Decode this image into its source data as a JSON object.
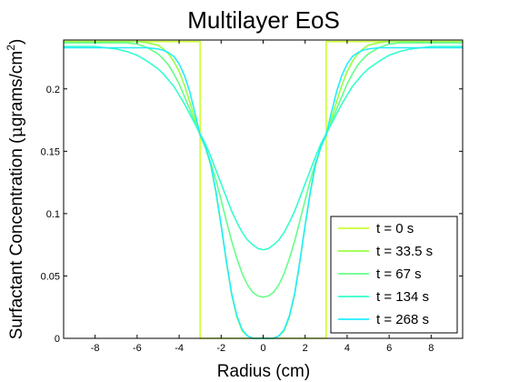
{
  "chart_data": {
    "type": "line",
    "title": "Multilayer EoS",
    "xlabel": "Radius (cm)",
    "ylabel_prefix": "Surfactant Concentration (",
    "ylabel_mu": "μ",
    "ylabel_mid": "grams/cm",
    "ylabel_sup": "2",
    "ylabel_suffix": ")",
    "xlim": [
      -9.5,
      9.5
    ],
    "ylim": [
      0,
      0.24
    ],
    "xticks": [
      -8,
      -6,
      -4,
      -2,
      0,
      2,
      4,
      6,
      8
    ],
    "yticks": [
      0,
      0.05,
      0.1,
      0.15,
      0.2
    ],
    "ytick_labels": [
      "0",
      "0.05",
      "0.1",
      "0.15",
      "0.2"
    ],
    "grid": false,
    "legend_position": "bottom-right",
    "series": [
      {
        "name": "t = 0 s",
        "color": "#ccff33",
        "x": [
          -9.5,
          -3.0,
          -3.0,
          3.0,
          3.0,
          9.5
        ],
        "y": [
          0.238,
          0.238,
          0.0,
          0.0,
          0.238,
          0.238
        ]
      },
      {
        "name": "t = 33.5 s",
        "color": "#99ff44",
        "x": [
          0,
          0.25,
          0.5,
          0.75,
          1.0,
          1.25,
          1.5,
          1.75,
          2.0,
          2.25,
          2.5,
          2.75,
          3.0,
          3.25,
          3.5,
          3.75,
          4.0,
          4.25,
          4.5,
          4.75,
          5.0,
          5.5,
          6.0,
          6.5,
          7.0,
          7.5,
          8.0,
          9.0,
          9.5
        ],
        "y": [
          0.0,
          0.0,
          0.0,
          0.002,
          0.006,
          0.017,
          0.035,
          0.061,
          0.09,
          0.117,
          0.139,
          0.153,
          0.163,
          0.176,
          0.19,
          0.203,
          0.214,
          0.222,
          0.228,
          0.232,
          0.235,
          0.237,
          0.238,
          0.238,
          0.238,
          0.238,
          0.238,
          0.238,
          0.238
        ]
      },
      {
        "name": "t = 67 s",
        "color": "#66ff88",
        "x": [
          0,
          0.25,
          0.5,
          0.75,
          1.0,
          1.25,
          1.5,
          1.75,
          2.0,
          2.25,
          2.5,
          2.75,
          3.0,
          3.25,
          3.5,
          3.75,
          4.0,
          4.25,
          4.5,
          4.75,
          5.0,
          5.5,
          6.0,
          6.5,
          7.0,
          7.5,
          8.0,
          9.0,
          9.5
        ],
        "y": [
          0.033,
          0.034,
          0.037,
          0.043,
          0.052,
          0.064,
          0.078,
          0.094,
          0.111,
          0.127,
          0.141,
          0.153,
          0.163,
          0.173,
          0.184,
          0.194,
          0.204,
          0.212,
          0.219,
          0.224,
          0.228,
          0.233,
          0.236,
          0.237,
          0.237,
          0.237,
          0.237,
          0.237,
          0.237
        ]
      },
      {
        "name": "t = 134 s",
        "color": "#33ffcc",
        "x": [
          0,
          0.25,
          0.5,
          0.75,
          1.0,
          1.25,
          1.5,
          1.75,
          2.0,
          2.25,
          2.5,
          2.75,
          3.0,
          3.25,
          3.5,
          3.75,
          4.0,
          4.25,
          4.5,
          4.75,
          5.0,
          5.5,
          6.0,
          6.5,
          7.0,
          7.5,
          8.0,
          9.0,
          9.5
        ],
        "y": [
          0.071,
          0.072,
          0.075,
          0.079,
          0.085,
          0.093,
          0.102,
          0.113,
          0.124,
          0.135,
          0.146,
          0.156,
          0.164,
          0.172,
          0.18,
          0.188,
          0.195,
          0.202,
          0.207,
          0.212,
          0.216,
          0.222,
          0.227,
          0.23,
          0.232,
          0.233,
          0.234,
          0.234,
          0.234
        ]
      },
      {
        "name": "t = 268 s",
        "color": "#22eeff",
        "x": [
          0,
          0.25,
          0.5,
          0.75,
          1.0,
          1.25,
          1.5,
          1.75,
          2.0,
          2.25,
          2.5,
          2.75,
          3.0,
          3.25,
          3.5,
          3.75,
          4.0,
          4.25,
          4.5,
          4.75,
          5.0,
          5.5,
          6.0,
          6.5,
          7.0,
          7.5,
          8.0,
          9.0,
          9.5
        ],
        "y": [
          0.0,
          0.0,
          0.0,
          0.002,
          0.007,
          0.018,
          0.036,
          0.062,
          0.091,
          0.118,
          0.14,
          0.154,
          0.163,
          0.181,
          0.198,
          0.211,
          0.22,
          0.226,
          0.229,
          0.231,
          0.232,
          0.233,
          0.233,
          0.233,
          0.233,
          0.233,
          0.233,
          0.233,
          0.233
        ]
      }
    ]
  }
}
